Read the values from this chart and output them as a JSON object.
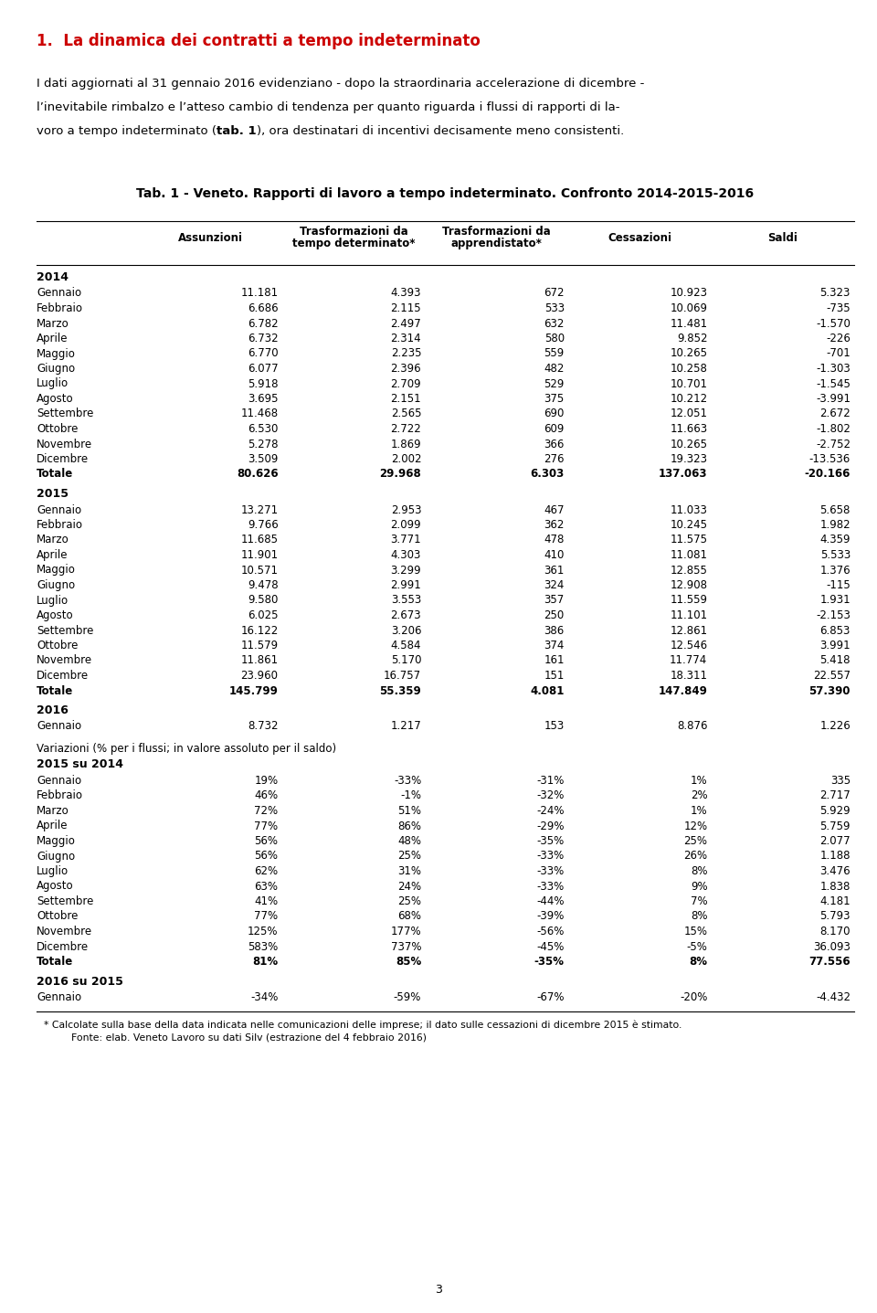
{
  "title_number": "1.",
  "title_text": "La dinamica dei contratti a tempo indeterminato",
  "body_line1": "I dati aggiornati al 31 gennaio 2016 evidenziano - dopo la straordinaria accelerazione di dicembre -",
  "body_line2": "l’inevitabile rimbalzo e l’atteso cambio di tendenza per quanto riguarda i flussi di rapporti di la-",
  "body_line3_pre": "voro a tempo indeterminato (",
  "body_line3_bold": "tab. 1",
  "body_line3_post": "), ora destinatari di incentivi decisamente meno consistenti.",
  "table_title": "Tab. 1 - Veneto. Rapporti di lavoro a tempo indeterminato. Confronto 2014-2015-2016",
  "col_headers": [
    "Assunzioni",
    "Trasformazioni da\ntempo determinato*",
    "Trasformazioni da\napprendistato*",
    "Cessazioni",
    "Saldi"
  ],
  "section_2014": "2014",
  "rows_2014": [
    [
      "Gennaio",
      "11.181",
      "4.393",
      "672",
      "10.923",
      "5.323"
    ],
    [
      "Febbraio",
      "6.686",
      "2.115",
      "533",
      "10.069",
      "-735"
    ],
    [
      "Marzo",
      "6.782",
      "2.497",
      "632",
      "11.481",
      "-1.570"
    ],
    [
      "Aprile",
      "6.732",
      "2.314",
      "580",
      "9.852",
      "-226"
    ],
    [
      "Maggio",
      "6.770",
      "2.235",
      "559",
      "10.265",
      "-701"
    ],
    [
      "Giugno",
      "6.077",
      "2.396",
      "482",
      "10.258",
      "-1.303"
    ],
    [
      "Luglio",
      "5.918",
      "2.709",
      "529",
      "10.701",
      "-1.545"
    ],
    [
      "Agosto",
      "3.695",
      "2.151",
      "375",
      "10.212",
      "-3.991"
    ],
    [
      "Settembre",
      "11.468",
      "2.565",
      "690",
      "12.051",
      "2.672"
    ],
    [
      "Ottobre",
      "6.530",
      "2.722",
      "609",
      "11.663",
      "-1.802"
    ],
    [
      "Novembre",
      "5.278",
      "1.869",
      "366",
      "10.265",
      "-2.752"
    ],
    [
      "Dicembre",
      "3.509",
      "2.002",
      "276",
      "19.323",
      "-13.536"
    ],
    [
      "Totale",
      "80.626",
      "29.968",
      "6.303",
      "137.063",
      "-20.166"
    ]
  ],
  "section_2015": "2015",
  "rows_2015": [
    [
      "Gennaio",
      "13.271",
      "2.953",
      "467",
      "11.033",
      "5.658"
    ],
    [
      "Febbraio",
      "9.766",
      "2.099",
      "362",
      "10.245",
      "1.982"
    ],
    [
      "Marzo",
      "11.685",
      "3.771",
      "478",
      "11.575",
      "4.359"
    ],
    [
      "Aprile",
      "11.901",
      "4.303",
      "410",
      "11.081",
      "5.533"
    ],
    [
      "Maggio",
      "10.571",
      "3.299",
      "361",
      "12.855",
      "1.376"
    ],
    [
      "Giugno",
      "9.478",
      "2.991",
      "324",
      "12.908",
      "-115"
    ],
    [
      "Luglio",
      "9.580",
      "3.553",
      "357",
      "11.559",
      "1.931"
    ],
    [
      "Agosto",
      "6.025",
      "2.673",
      "250",
      "11.101",
      "-2.153"
    ],
    [
      "Settembre",
      "16.122",
      "3.206",
      "386",
      "12.861",
      "6.853"
    ],
    [
      "Ottobre",
      "11.579",
      "4.584",
      "374",
      "12.546",
      "3.991"
    ],
    [
      "Novembre",
      "11.861",
      "5.170",
      "161",
      "11.774",
      "5.418"
    ],
    [
      "Dicembre",
      "23.960",
      "16.757",
      "151",
      "18.311",
      "22.557"
    ],
    [
      "Totale",
      "145.799",
      "55.359",
      "4.081",
      "147.849",
      "57.390"
    ]
  ],
  "section_2016": "2016",
  "rows_2016": [
    [
      "Gennaio",
      "8.732",
      "1.217",
      "153",
      "8.876",
      "1.226"
    ]
  ],
  "variazioni_title": "Variazioni (% per i flussi; in valore assoluto per il saldo)",
  "section_2015su2014": "2015 su 2014",
  "rows_var_2015su2014": [
    [
      "Gennaio",
      "19%",
      "-33%",
      "-31%",
      "1%",
      "335"
    ],
    [
      "Febbraio",
      "46%",
      "-1%",
      "-32%",
      "2%",
      "2.717"
    ],
    [
      "Marzo",
      "72%",
      "51%",
      "-24%",
      "1%",
      "5.929"
    ],
    [
      "Aprile",
      "77%",
      "86%",
      "-29%",
      "12%",
      "5.759"
    ],
    [
      "Maggio",
      "56%",
      "48%",
      "-35%",
      "25%",
      "2.077"
    ],
    [
      "Giugno",
      "56%",
      "25%",
      "-33%",
      "26%",
      "1.188"
    ],
    [
      "Luglio",
      "62%",
      "31%",
      "-33%",
      "8%",
      "3.476"
    ],
    [
      "Agosto",
      "63%",
      "24%",
      "-33%",
      "9%",
      "1.838"
    ],
    [
      "Settembre",
      "41%",
      "25%",
      "-44%",
      "7%",
      "4.181"
    ],
    [
      "Ottobre",
      "77%",
      "68%",
      "-39%",
      "8%",
      "5.793"
    ],
    [
      "Novembre",
      "125%",
      "177%",
      "-56%",
      "15%",
      "8.170"
    ],
    [
      "Dicembre",
      "583%",
      "737%",
      "-45%",
      "-5%",
      "36.093"
    ],
    [
      "Totale",
      "81%",
      "85%",
      "-35%",
      "8%",
      "77.556"
    ]
  ],
  "section_2016su2015": "2016 su 2015",
  "rows_var_2016su2015": [
    [
      "Gennaio",
      "-34%",
      "-59%",
      "-67%",
      "-20%",
      "-4.432"
    ]
  ],
  "footnote1": "* Calcolate sulla base della data indicata nelle comunicazioni delle imprese; il dato sulle cessazioni di dicembre 2015 è stimato.",
  "footnote2": "Fonte: elab. Veneto Lavoro su dati Silv (estrazione del 4 febbraio 2016)",
  "page_number": "3",
  "bg_color": "#ffffff",
  "title_color": "#cc0000",
  "title_font_size": 12,
  "body_font_size": 9.5,
  "table_title_font_size": 10,
  "col_header_font_size": 8.5,
  "data_font_size": 8.5,
  "section_font_size": 9
}
